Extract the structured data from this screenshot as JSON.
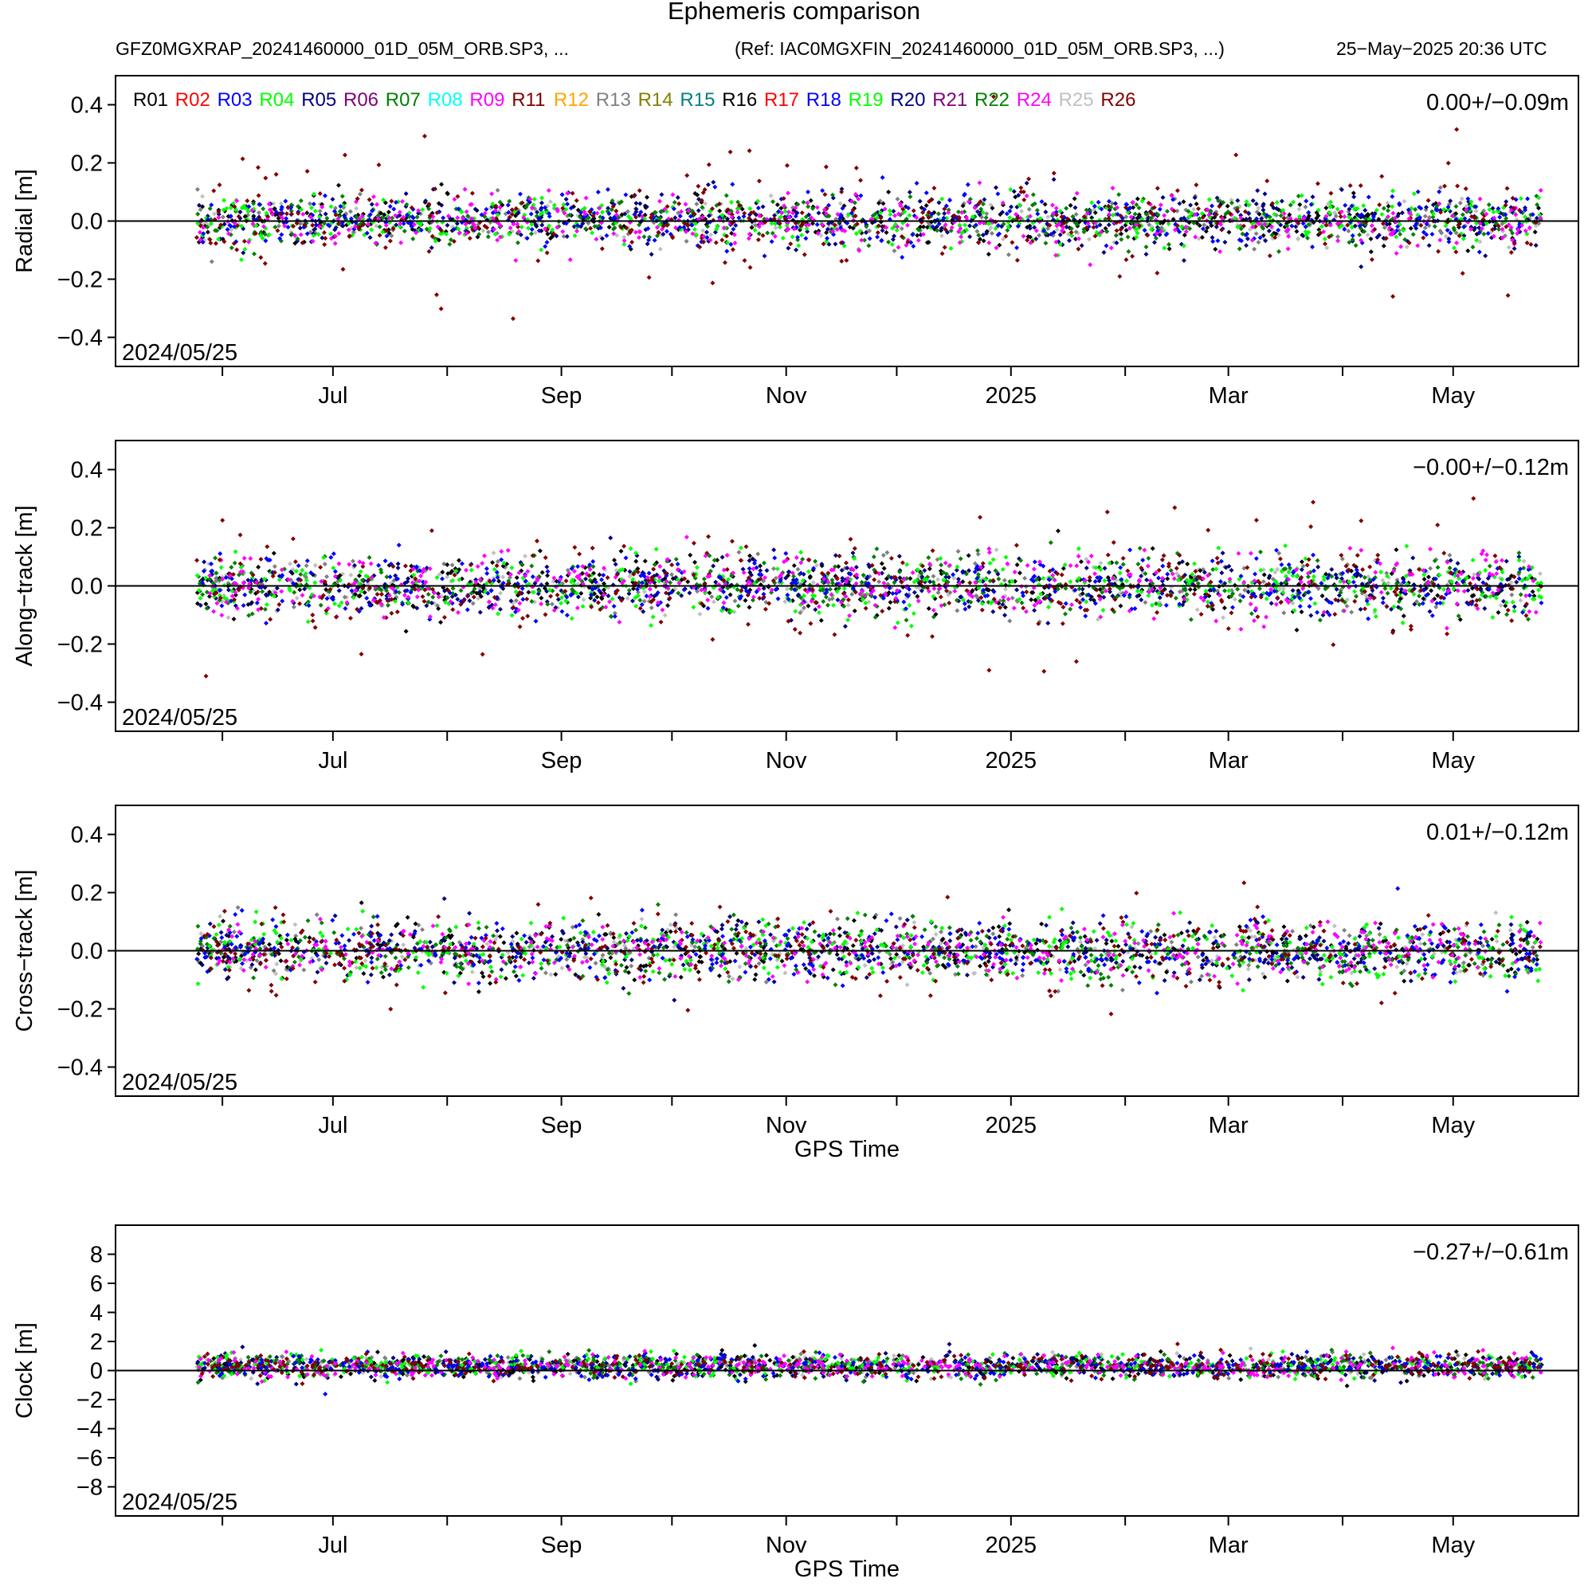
{
  "figure": {
    "title": "Ephemeris comparison",
    "subtitle_left": "GFZ0MGXRAP_20241460000_01D_05M_ORB.SP3, ...",
    "subtitle_ref": "(Ref: IAC0MGXFIN_20241460000_01D_05M_ORB.SP3, ...)",
    "subtitle_date": "25−May−2025 20:36 UTC"
  },
  "chart_data": [
    {
      "type": "scatter",
      "panel": "radial",
      "ylabel": "Radial [m]",
      "xlabel": "",
      "ylim": [
        -0.5,
        0.5
      ],
      "yticks": [
        -0.4,
        -0.2,
        0.0,
        0.2,
        0.4
      ],
      "ytick_labels": [
        "−0.4",
        "−0.2",
        "0.0",
        "0.2",
        "0.4"
      ],
      "stats": "0.00+/−0.09m",
      "date_label": "2024/05/25",
      "legend": "top-left",
      "series_noise": {
        "R26": 0.12,
        "R24": 0.05,
        "R03": 0.06,
        "R20": 0.06,
        "default": 0.04
      },
      "annotations": [
        "x-axis spans 2024/05/25 to 2025/05/25; ~19 GLONASS satellites, densely sampled"
      ]
    },
    {
      "type": "scatter",
      "panel": "along-track",
      "ylabel": "Along−track [m]",
      "xlabel": "",
      "ylim": [
        -0.5,
        0.5
      ],
      "yticks": [
        -0.4,
        -0.2,
        0.0,
        0.2,
        0.4
      ],
      "ytick_labels": [
        "−0.4",
        "−0.2",
        "0.0",
        "0.2",
        "0.4"
      ],
      "stats": "−0.00+/−0.12m",
      "date_label": "2024/05/25",
      "series_noise": {
        "R26": 0.12,
        "R24": 0.06,
        "default": 0.05
      }
    },
    {
      "type": "scatter",
      "panel": "cross-track",
      "ylabel": "Cross−track [m]",
      "xlabel": "GPS Time",
      "ylim": [
        -0.5,
        0.5
      ],
      "yticks": [
        -0.4,
        -0.2,
        0.0,
        0.2,
        0.4
      ],
      "ytick_labels": [
        "−0.4",
        "−0.2",
        "0.0",
        "0.2",
        "0.4"
      ],
      "stats": "0.01+/−0.12m",
      "date_label": "2024/05/25",
      "series_noise": {
        "R26": 0.08,
        "R24": 0.04,
        "default": 0.05
      }
    },
    {
      "type": "scatter",
      "panel": "clock",
      "ylabel": "Clock [m]",
      "xlabel": "GPS Time",
      "ylim": [
        -10,
        10
      ],
      "yticks": [
        -8,
        -6,
        -4,
        -2,
        0,
        2,
        4,
        6,
        8
      ],
      "ytick_labels": [
        "−8",
        "−6",
        "−4",
        "−2",
        "0",
        "2",
        "4",
        "6",
        "8"
      ],
      "stats": "−0.27+/−0.61m",
      "date_label": "2024/05/25",
      "series_noise": {
        "default": 0.4
      }
    }
  ],
  "x_axis": {
    "start": "2024-05-25",
    "end": "2025-05-25",
    "tick_dates": [
      "2024-06-01",
      "2024-07-01",
      "2024-08-01",
      "2024-09-01",
      "2024-10-01",
      "2024-11-01",
      "2024-12-01",
      "2025-01-01",
      "2025-02-01",
      "2025-03-01",
      "2025-04-01",
      "2025-05-01"
    ],
    "labels": [
      {
        "date": "2024-07-01",
        "text": "Jul"
      },
      {
        "date": "2024-09-01",
        "text": "Sep"
      },
      {
        "date": "2024-11-01",
        "text": "Nov"
      },
      {
        "date": "2025-01-01",
        "text": "2025"
      },
      {
        "date": "2025-03-01",
        "text": "Mar"
      },
      {
        "date": "2025-05-01",
        "text": "May"
      }
    ]
  },
  "satellites": [
    {
      "id": "R01",
      "color": "#000000"
    },
    {
      "id": "R02",
      "color": "#ff0000"
    },
    {
      "id": "R03",
      "color": "#0000ff"
    },
    {
      "id": "R04",
      "color": "#00ff00"
    },
    {
      "id": "R05",
      "color": "#000080"
    },
    {
      "id": "R06",
      "color": "#800080"
    },
    {
      "id": "R07",
      "color": "#008000"
    },
    {
      "id": "R08",
      "color": "#00ffff"
    },
    {
      "id": "R09",
      "color": "#ff00ff"
    },
    {
      "id": "R11",
      "color": "#800000"
    },
    {
      "id": "R12",
      "color": "#ffa500"
    },
    {
      "id": "R13",
      "color": "#808080"
    },
    {
      "id": "R14",
      "color": "#808000"
    },
    {
      "id": "R15",
      "color": "#008080"
    },
    {
      "id": "R16",
      "color": "#000000"
    },
    {
      "id": "R17",
      "color": "#ff0000"
    },
    {
      "id": "R18",
      "color": "#0000ff"
    },
    {
      "id": "R19",
      "color": "#00ff00"
    },
    {
      "id": "R20",
      "color": "#000080"
    },
    {
      "id": "R21",
      "color": "#800080"
    },
    {
      "id": "R22",
      "color": "#008000"
    },
    {
      "id": "R24",
      "color": "#ff00ff"
    },
    {
      "id": "R25",
      "color": "#c0c0c0"
    },
    {
      "id": "R26",
      "color": "#800000"
    }
  ]
}
